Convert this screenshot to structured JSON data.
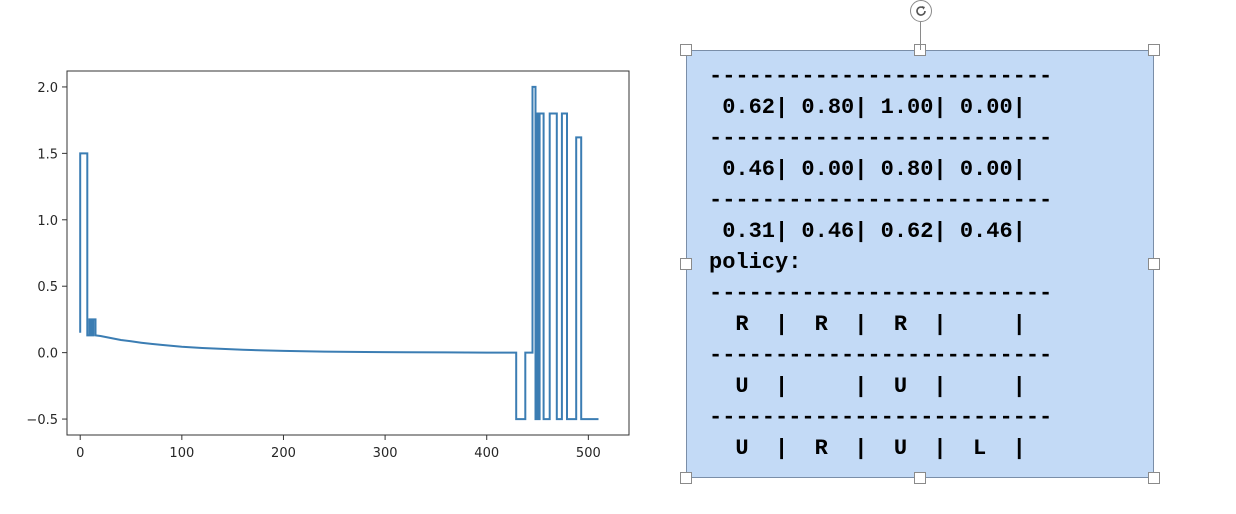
{
  "chart_data": {
    "type": "line",
    "title": "",
    "xlabel": "",
    "ylabel": "",
    "xlim": [
      -13,
      540
    ],
    "ylim": [
      -0.62,
      2.12
    ],
    "xticks": [
      0,
      100,
      200,
      300,
      400,
      500
    ],
    "xtick_labels": [
      "0",
      "100",
      "200",
      "300",
      "400",
      "500"
    ],
    "yticks": [
      -0.5,
      0.0,
      0.5,
      1.0,
      1.5,
      2.0
    ],
    "ytick_labels": [
      "−0.5",
      "0.0",
      "0.5",
      "1.0",
      "1.5",
      "2.0"
    ],
    "grid": false,
    "series": [
      {
        "color": "#3b7db3",
        "x": [
          0,
          0,
          7,
          7,
          9,
          9,
          11,
          11,
          13,
          13,
          15,
          15,
          20,
          30,
          40,
          50,
          60,
          70,
          80,
          100,
          120,
          140,
          160,
          180,
          200,
          240,
          280,
          320,
          360,
          400,
          429,
          429,
          438,
          438,
          445,
          445,
          448,
          448,
          450,
          450,
          451,
          451,
          452,
          452,
          456,
          456,
          462,
          462,
          469,
          469,
          474,
          474,
          479,
          479,
          488,
          488,
          493,
          493,
          496,
          496,
          510
        ],
        "y": [
          0.15,
          1.5,
          1.5,
          0.13,
          0.13,
          0.25,
          0.25,
          0.13,
          0.13,
          0.25,
          0.25,
          0.13,
          0.125,
          0.11,
          0.095,
          0.085,
          0.075,
          0.066,
          0.058,
          0.045,
          0.035,
          0.028,
          0.022,
          0.017,
          0.013,
          0.008,
          0.005,
          0.003,
          0.002,
          0.0,
          0.0,
          -0.5,
          -0.5,
          0.0,
          0.0,
          2.0,
          2.0,
          -0.5,
          -0.5,
          1.8,
          1.8,
          -0.5,
          -0.5,
          1.8,
          1.8,
          -0.5,
          -0.5,
          1.8,
          1.8,
          -0.5,
          -0.5,
          1.8,
          1.8,
          -0.5,
          -0.5,
          1.62,
          1.62,
          -0.5,
          -0.5,
          -0.5,
          -0.5
        ]
      }
    ]
  },
  "textbox": {
    "lines": [
      "--------------------------",
      " 0.62| 0.80| 1.00| 0.00|",
      "--------------------------",
      " 0.46| 0.00| 0.80| 0.00|",
      "--------------------------",
      " 0.31| 0.46| 0.62| 0.46|",
      "policy:",
      "--------------------------",
      "  R  |  R  |  R  |     |",
      "--------------------------",
      "  U  |     |  U  |     |",
      "--------------------------",
      "  U  |  R  |  U  |  L  |"
    ]
  },
  "icons": {
    "rotate_handle": "rotate-icon"
  },
  "colors": {
    "line": "#3b7db3",
    "textbox_fill": "#c3daf6"
  }
}
